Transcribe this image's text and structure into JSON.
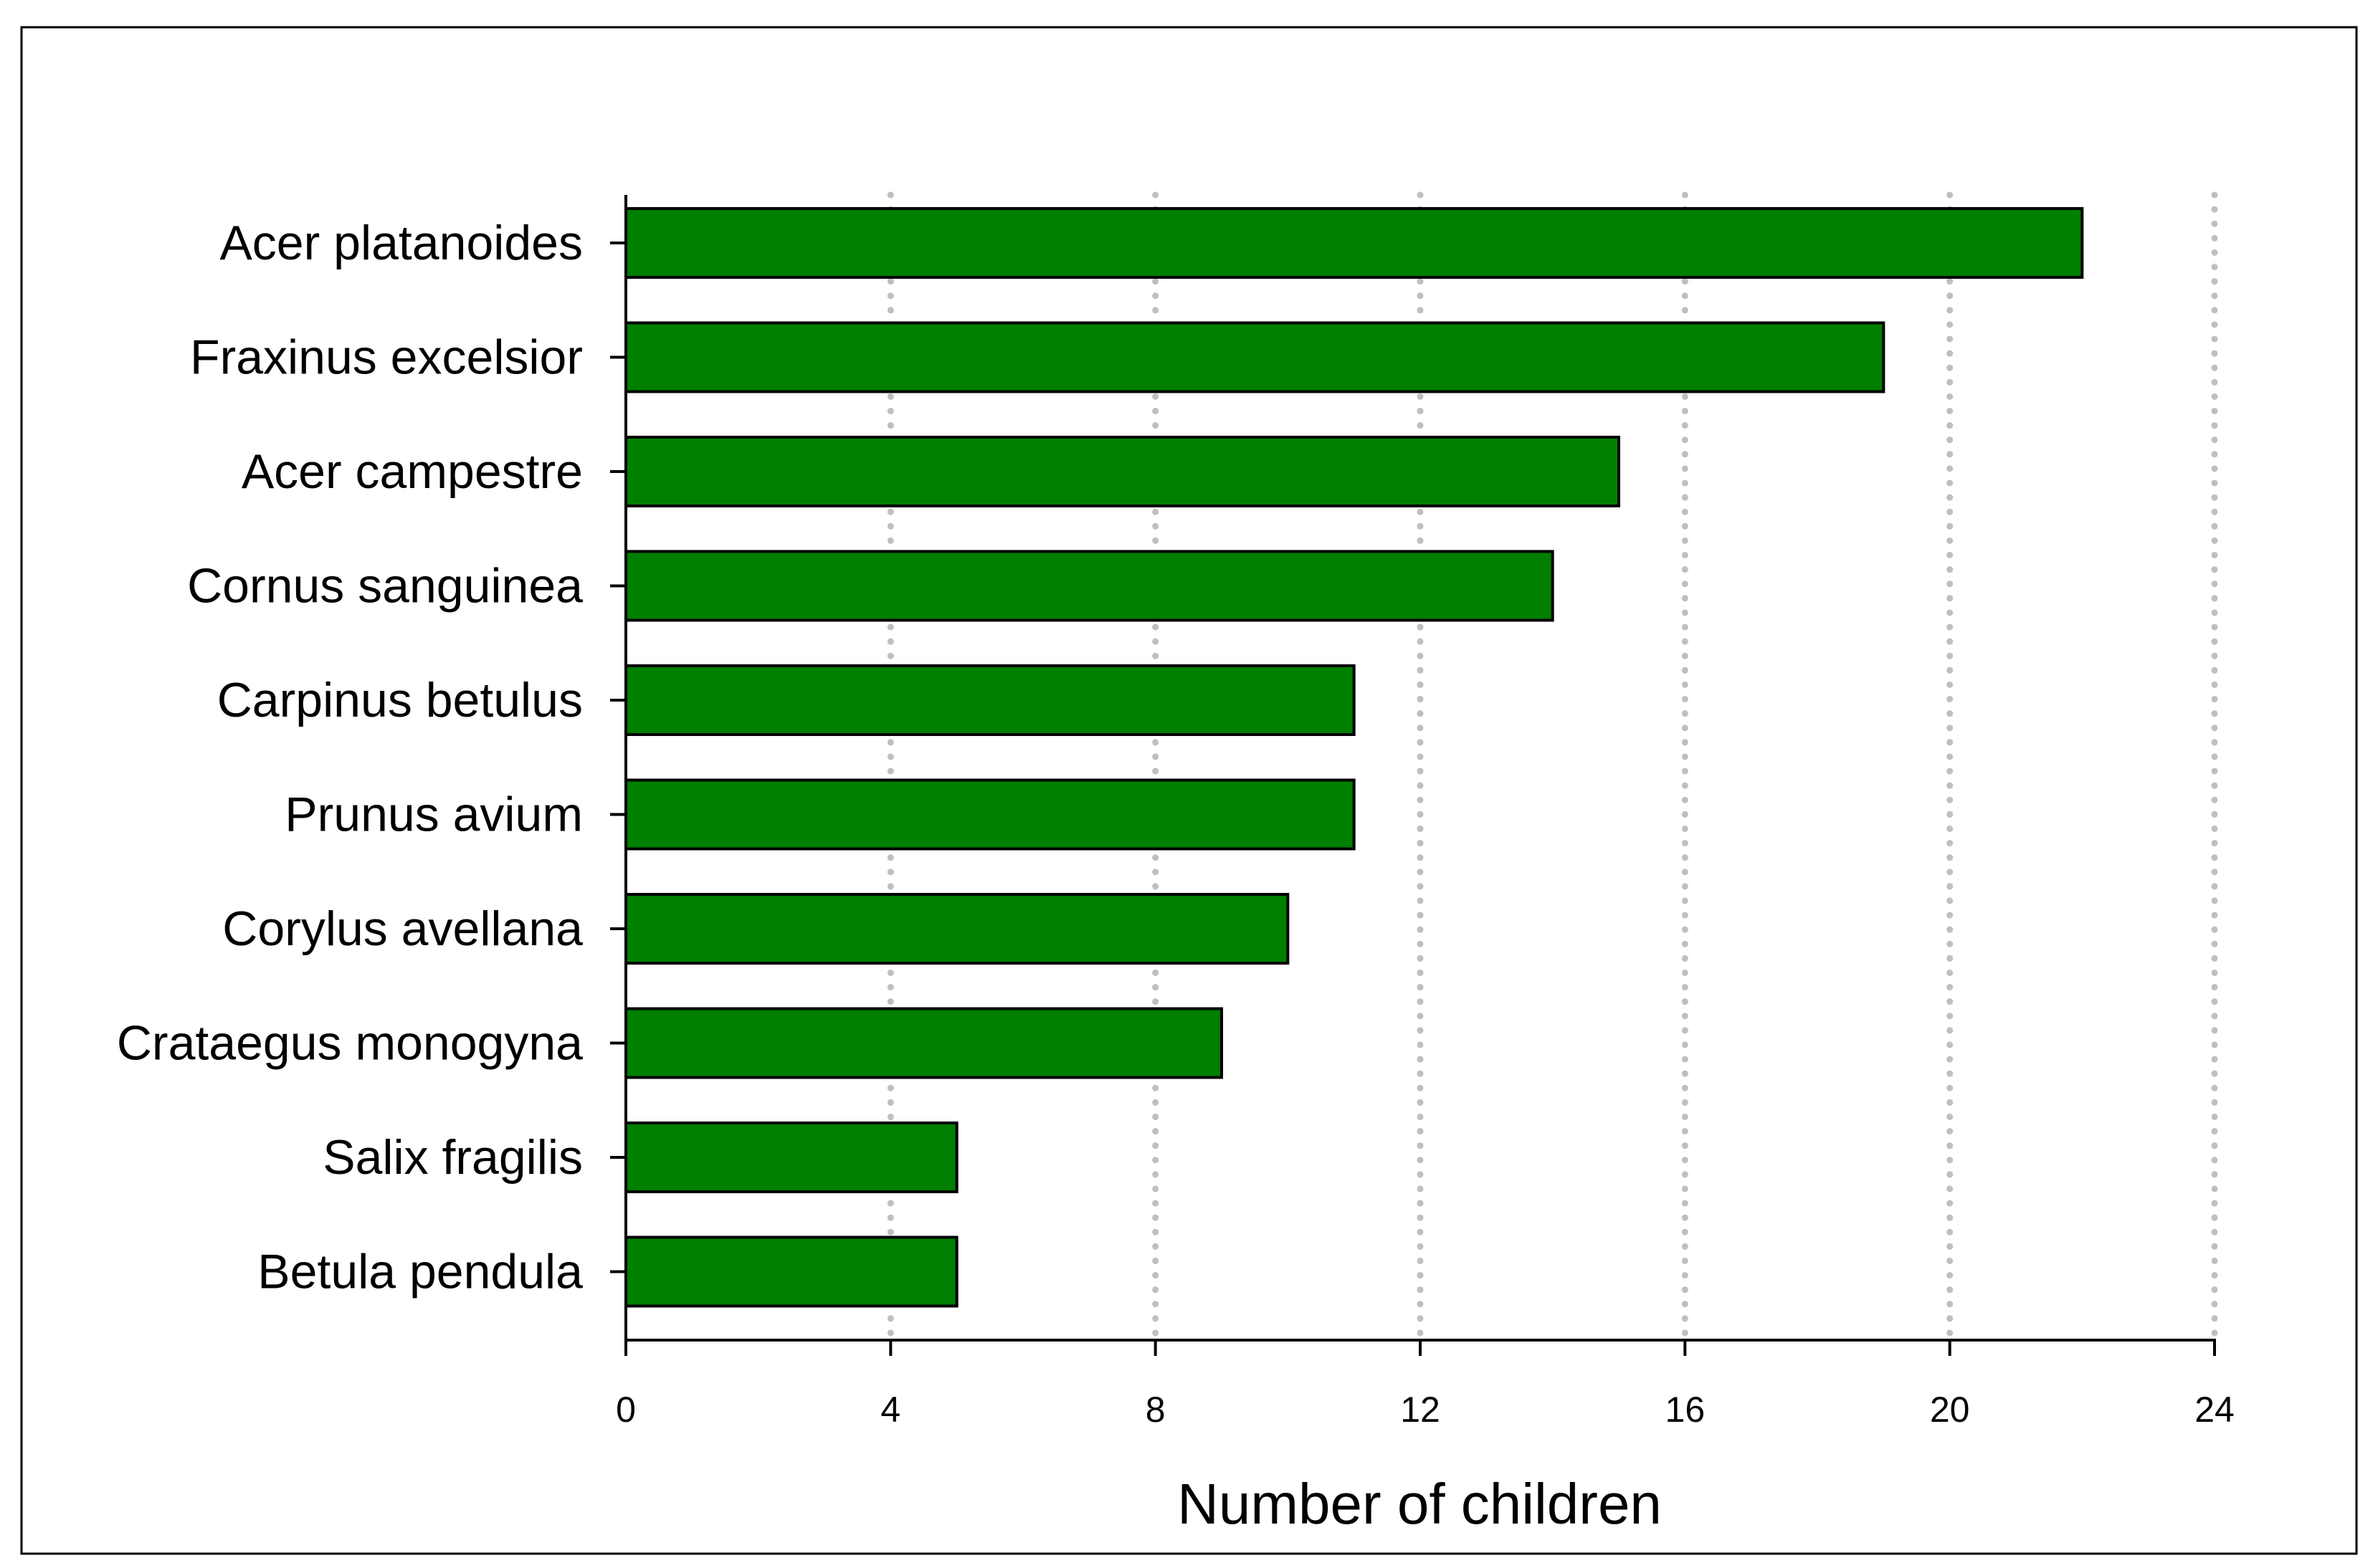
{
  "chart_data": {
    "type": "bar",
    "orientation": "horizontal",
    "categories": [
      "Acer platanoides",
      "Fraxinus excelsior",
      "Acer campestre",
      "Cornus sanguinea",
      "Carpinus betulus",
      "Prunus avium",
      "Corylus avellana",
      "Crataegus monogyna",
      "Salix fragilis",
      "Betula pendula"
    ],
    "values": [
      22,
      19,
      15,
      14,
      11,
      11,
      10,
      9,
      5,
      5
    ],
    "xlabel": "Number of children",
    "ylabel": "",
    "xlim": [
      0,
      24
    ],
    "xticks": [
      "0",
      "4",
      "8",
      "12",
      "16",
      "20",
      "24"
    ],
    "grid": "vertical dotted",
    "legend": "none",
    "colors": {
      "bar_fill": "#007f00",
      "bar_stroke": "#000000",
      "grid": "#bfbfbf",
      "axis": "#000000",
      "frame": "#000000"
    }
  }
}
